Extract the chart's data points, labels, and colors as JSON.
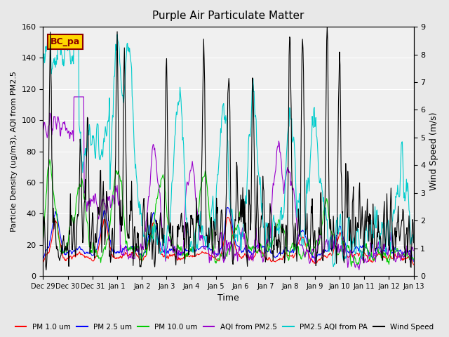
{
  "title": "Purple Air Particulate Matter",
  "xlabel": "Time",
  "ylabel_left": "Particle Density (ug/m3), AQI from PM2.5",
  "ylabel_right": "Wind Speed (m/s)",
  "annotation_text": "BC_pa",
  "annotation_color": "#8B0000",
  "annotation_bg": "#FFD700",
  "ylim_left": [
    0,
    160
  ],
  "ylim_right": [
    0.0,
    9.0
  ],
  "yticks_left": [
    0,
    20,
    40,
    60,
    80,
    100,
    120,
    140,
    160
  ],
  "yticks_right": [
    0.0,
    1.0,
    2.0,
    3.0,
    4.0,
    5.0,
    6.0,
    7.0,
    8.0,
    9.0
  ],
  "xtick_labels": [
    "Dec 29",
    "Dec 30",
    "Dec 31",
    "Jan 1",
    "Jan 2",
    "Jan 3",
    "Jan 4",
    "Jan 5",
    "Jan 6",
    "Jan 7",
    "Jan 8",
    "Jan 9",
    "Jan 10",
    "Jan 11",
    "Jan 12",
    "Jan 13"
  ],
  "bg_color": "#E8E8E8",
  "plot_bg_color": "#F0F0F0",
  "legend_entries": [
    {
      "label": "PM 1.0 um",
      "color": "#FF0000"
    },
    {
      "label": "PM 2.5 um",
      "color": "#0000FF"
    },
    {
      "label": "PM 10.0 um",
      "color": "#00CC00"
    },
    {
      "label": "AQI from PM2.5",
      "color": "#9900CC"
    },
    {
      "label": "PM2.5 AQI from PA",
      "color": "#00CCCC"
    },
    {
      "label": "Wind Speed",
      "color": "#000000"
    }
  ]
}
